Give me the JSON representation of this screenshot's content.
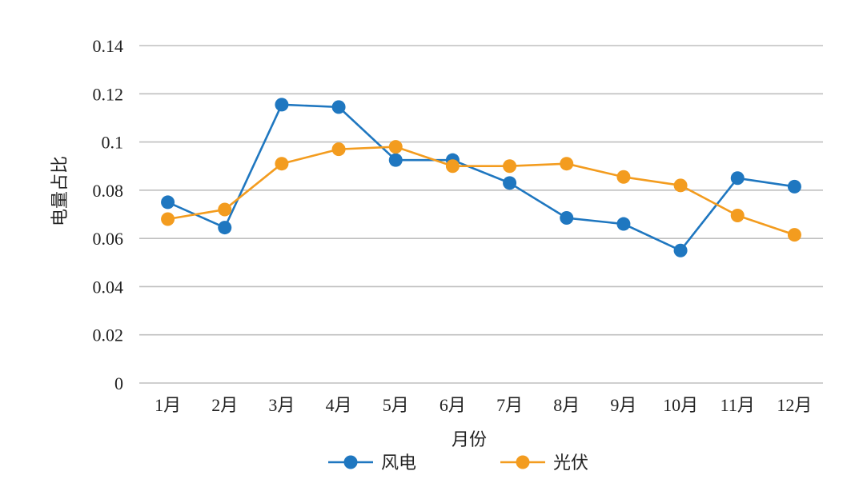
{
  "chart_data": {
    "type": "line",
    "title": "",
    "xlabel": "月份",
    "ylabel": "电量占比",
    "categories": [
      "1月",
      "2月",
      "3月",
      "4月",
      "5月",
      "6月",
      "7月",
      "8月",
      "9月",
      "10月",
      "11月",
      "12月"
    ],
    "ylim": [
      0,
      0.14
    ],
    "yticks": [
      "0",
      "0.02",
      "0.04",
      "0.06",
      "0.08",
      "0.1",
      "0.12",
      "0.14"
    ],
    "grid": true,
    "legend": "bottom",
    "series": [
      {
        "name": "风电",
        "color": "#1f77c0",
        "values": [
          0.075,
          0.0645,
          0.1155,
          0.1145,
          0.0925,
          0.0925,
          0.083,
          0.0685,
          0.066,
          0.055,
          0.085,
          0.0815
        ]
      },
      {
        "name": "光伏",
        "color": "#f39c1f",
        "values": [
          0.068,
          0.072,
          0.091,
          0.097,
          0.098,
          0.09,
          0.09,
          0.091,
          0.0855,
          0.082,
          0.0695,
          0.0615
        ]
      }
    ]
  }
}
